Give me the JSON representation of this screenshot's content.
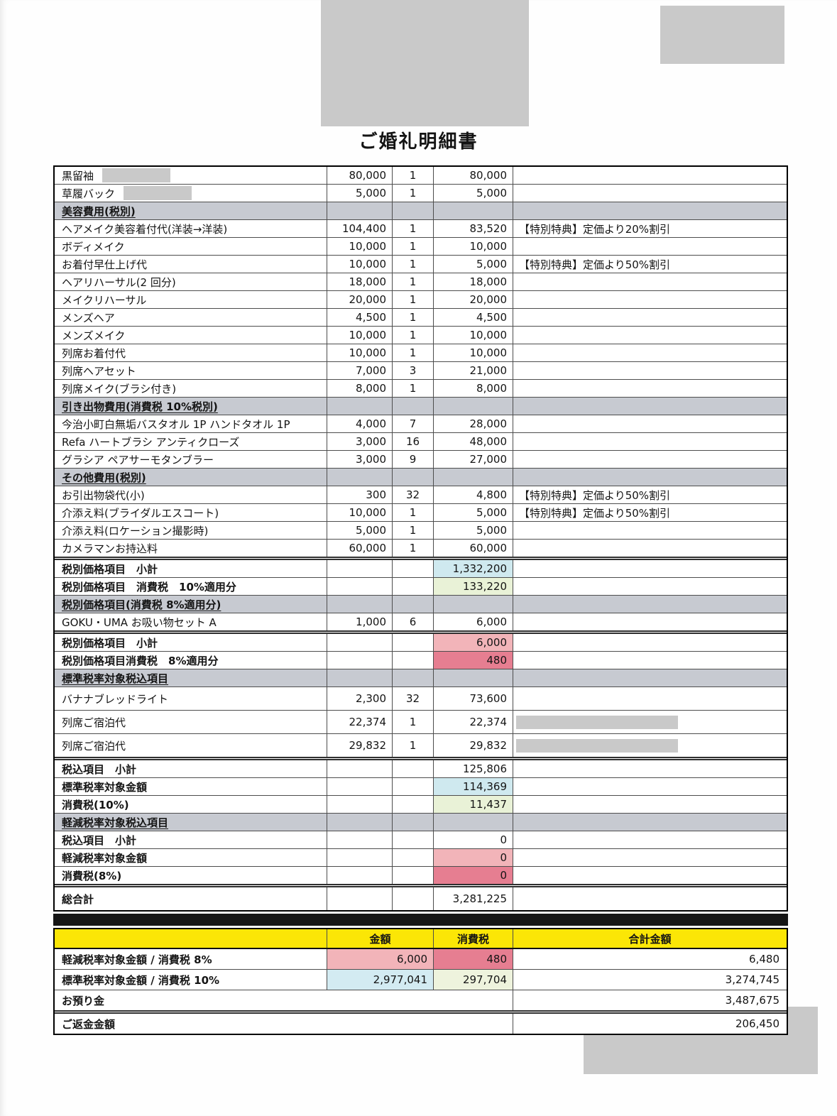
{
  "page": {
    "title": "ご婚礼明細書"
  },
  "colors": {
    "section_gray": "#c7cad1",
    "header_yellow": "#fbe606",
    "redact_gray": "#c9c9c9",
    "blue": "#cfe9ef",
    "green": "#e9f2d7",
    "pink": "#f2b4b9",
    "red": "#e67e91",
    "blue2": "#d3ebf2",
    "green2": "#eef3dd"
  },
  "table": {
    "rows": [
      {
        "type": "item",
        "label": "黒留袖",
        "unit": "80,000",
        "qty": "1",
        "amount": "80,000",
        "note": "",
        "redact_label": true
      },
      {
        "type": "item",
        "label": "草履バック",
        "unit": "5,000",
        "qty": "1",
        "amount": "5,000",
        "note": "",
        "redact_label": true
      },
      {
        "type": "section",
        "label": "美容費用(税別)"
      },
      {
        "type": "item",
        "label": "ヘアメイク美容着付代(洋装→洋装)",
        "unit": "104,400",
        "qty": "1",
        "amount": "83,520",
        "note": "【特別特典】定価より20%割引"
      },
      {
        "type": "item",
        "label": "ボディメイク",
        "unit": "10,000",
        "qty": "1",
        "amount": "10,000",
        "note": ""
      },
      {
        "type": "item",
        "label": "お着付早仕上げ代",
        "unit": "10,000",
        "qty": "1",
        "amount": "5,000",
        "note": "【特別特典】定価より50%割引"
      },
      {
        "type": "item",
        "label": "ヘアリハーサル(2 回分)",
        "unit": "18,000",
        "qty": "1",
        "amount": "18,000",
        "note": ""
      },
      {
        "type": "item",
        "label": "メイクリハーサル",
        "unit": "20,000",
        "qty": "1",
        "amount": "20,000",
        "note": ""
      },
      {
        "type": "item",
        "label": "メンズヘア",
        "unit": "4,500",
        "qty": "1",
        "amount": "4,500",
        "note": ""
      },
      {
        "type": "item",
        "label": "メンズメイク",
        "unit": "10,000",
        "qty": "1",
        "amount": "10,000",
        "note": ""
      },
      {
        "type": "item",
        "label": "列席お着付代",
        "unit": "10,000",
        "qty": "1",
        "amount": "10,000",
        "note": ""
      },
      {
        "type": "item",
        "label": "列席ヘアセット",
        "unit": "7,000",
        "qty": "3",
        "amount": "21,000",
        "note": ""
      },
      {
        "type": "item",
        "label": "列席メイク(ブラシ付き)",
        "unit": "8,000",
        "qty": "1",
        "amount": "8,000",
        "note": ""
      },
      {
        "type": "section",
        "label": "引き出物費用(消費税 10%税別)"
      },
      {
        "type": "item",
        "label": "今治小町白無垢バスタオル 1P ハンドタオル 1P",
        "unit": "4,000",
        "qty": "7",
        "amount": "28,000",
        "note": ""
      },
      {
        "type": "item",
        "label": "Refa ハートブラシ アンティクローズ",
        "unit": "3,000",
        "qty": "16",
        "amount": "48,000",
        "note": ""
      },
      {
        "type": "item",
        "label": "グラシア ペアサーモタンブラー",
        "unit": "3,000",
        "qty": "9",
        "amount": "27,000",
        "note": ""
      },
      {
        "type": "section",
        "label": "その他費用(税別)"
      },
      {
        "type": "item",
        "label": "お引出物袋代(小)",
        "unit": "300",
        "qty": "32",
        "amount": "4,800",
        "note": "【特別特典】定価より50%割引"
      },
      {
        "type": "item",
        "label": "介添え料(ブライダルエスコート)",
        "unit": "10,000",
        "qty": "1",
        "amount": "5,000",
        "note": "【特別特典】定価より50%割引"
      },
      {
        "type": "item",
        "label": "介添え料(ロケーション撮影時)",
        "unit": "5,000",
        "qty": "1",
        "amount": "5,000",
        "note": ""
      },
      {
        "type": "item",
        "label": "カメラマンお持込料",
        "unit": "60,000",
        "qty": "1",
        "amount": "60,000",
        "note": ""
      },
      {
        "type": "subtotal",
        "label": "税別価格項目　小計",
        "amount": "1,332,200",
        "bg": "blue",
        "sep": true
      },
      {
        "type": "subtotal",
        "label": "税別価格項目　消費税　10%適用分",
        "amount": "133,220",
        "bg": "green"
      },
      {
        "type": "section",
        "label": "税別価格項目(消費税 8%適用分)"
      },
      {
        "type": "item",
        "label": "GOKU・UMA お吸い物セット A",
        "unit": "1,000",
        "qty": "6",
        "amount": "6,000",
        "note": ""
      },
      {
        "type": "subtotal",
        "label": "税別価格項目　小計",
        "amount": "6,000",
        "bg": "pink",
        "sep": true
      },
      {
        "type": "subtotal",
        "label": "税別価格項目消費税　8%適用分",
        "amount": "480",
        "bg": "red"
      },
      {
        "type": "section",
        "label": "標準税率対象税込項目"
      },
      {
        "type": "item",
        "label": "バナナブレッドライト",
        "unit": "2,300",
        "qty": "32",
        "amount": "73,600",
        "note": "",
        "tall": true
      },
      {
        "type": "item",
        "label": "列席ご宿泊代",
        "unit": "22,374",
        "qty": "1",
        "amount": "22,374",
        "note": "",
        "tall": true,
        "redact_note": true
      },
      {
        "type": "item",
        "label": "列席ご宿泊代",
        "unit": "29,832",
        "qty": "1",
        "amount": "29,832",
        "note": "",
        "tall": true,
        "redact_note": true
      },
      {
        "type": "subtotal",
        "label": "税込項目　小計",
        "amount": "125,806",
        "sep": true
      },
      {
        "type": "subtotal",
        "label": "標準税率対象金額",
        "amount": "114,369",
        "bg": "blue"
      },
      {
        "type": "subtotal",
        "label": "消費税(10%)",
        "amount": "11,437",
        "bg": "green"
      },
      {
        "type": "section",
        "label": "軽減税率対象税込項目"
      },
      {
        "type": "subtotal",
        "label": "税込項目　小計",
        "amount": "0"
      },
      {
        "type": "subtotal",
        "label": "軽減税率対象金額",
        "amount": "0",
        "bg": "pink"
      },
      {
        "type": "subtotal",
        "label": "消費税(8%)",
        "amount": "0",
        "bg": "red"
      },
      {
        "type": "total",
        "label": "総合計",
        "amount": "3,281,225",
        "sep": true,
        "tall": true
      }
    ]
  },
  "summary": {
    "header": {
      "amount": "金額",
      "tax": "消費税",
      "total": "合計金額"
    },
    "rows": [
      {
        "label": "軽減税率対象金額 / 消費税 8%",
        "amount": "6,000",
        "amount_bg": "pink",
        "tax": "480",
        "tax_bg": "red",
        "total": "6,480"
      },
      {
        "label": "標準税率対象金額 / 消費税 10%",
        "amount": "2,977,041",
        "amount_bg": "blue2",
        "tax": "297,704",
        "tax_bg": "green2",
        "total": "3,274,745"
      },
      {
        "label": "お預り金",
        "total": "3,487,675",
        "merged": true
      },
      {
        "label": "ご返金金額",
        "total": "206,450",
        "merged": true,
        "sep": true
      }
    ]
  }
}
